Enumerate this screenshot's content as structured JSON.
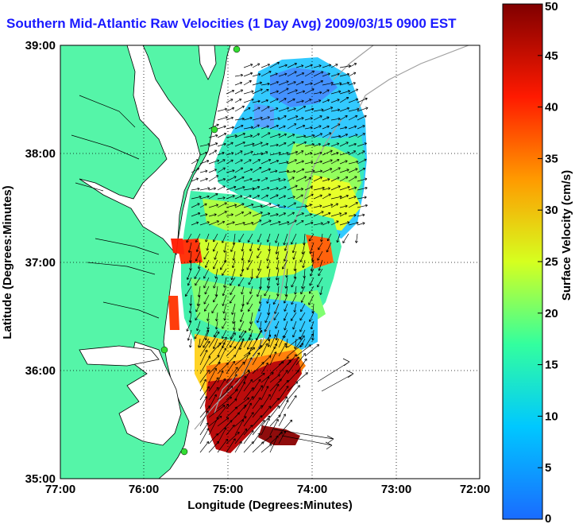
{
  "title": "Southern Mid-Atlantic Raw Velocities (1 Day Avg) 2009/03/15 0900 EST",
  "x_axis": {
    "label": "Longitude (Degrees:Minutes)",
    "ticks": [
      "77:00",
      "76:00",
      "75:00",
      "74:00",
      "73:00",
      "72:00"
    ],
    "values": [
      -77,
      -76,
      -75,
      -74,
      -73,
      -72
    ]
  },
  "y_axis": {
    "label": "Latitude (Degrees:Minutes)",
    "ticks": [
      "39:00",
      "38:00",
      "37:00",
      "36:00",
      "35:00"
    ],
    "values": [
      39,
      38,
      37,
      36,
      35
    ]
  },
  "colorbar": {
    "label": "Surface Velocity (cm/s)",
    "ticks": [
      "50",
      "45",
      "40",
      "35",
      "30",
      "25",
      "20",
      "15",
      "10",
      "5",
      "0"
    ],
    "range": [
      0,
      50
    ],
    "colors": [
      "#1a6bff",
      "#00c8ff",
      "#33ff9e",
      "#d6ff1f",
      "#ff9a00",
      "#ff1a00",
      "#800000"
    ]
  },
  "colors": {
    "land": "#55f5a8",
    "water": "#ffffff",
    "coast": "#000000",
    "isobath": "#a0a0a0",
    "arrows": "#000000",
    "site_markers": "#33dd33"
  },
  "grid": true
}
